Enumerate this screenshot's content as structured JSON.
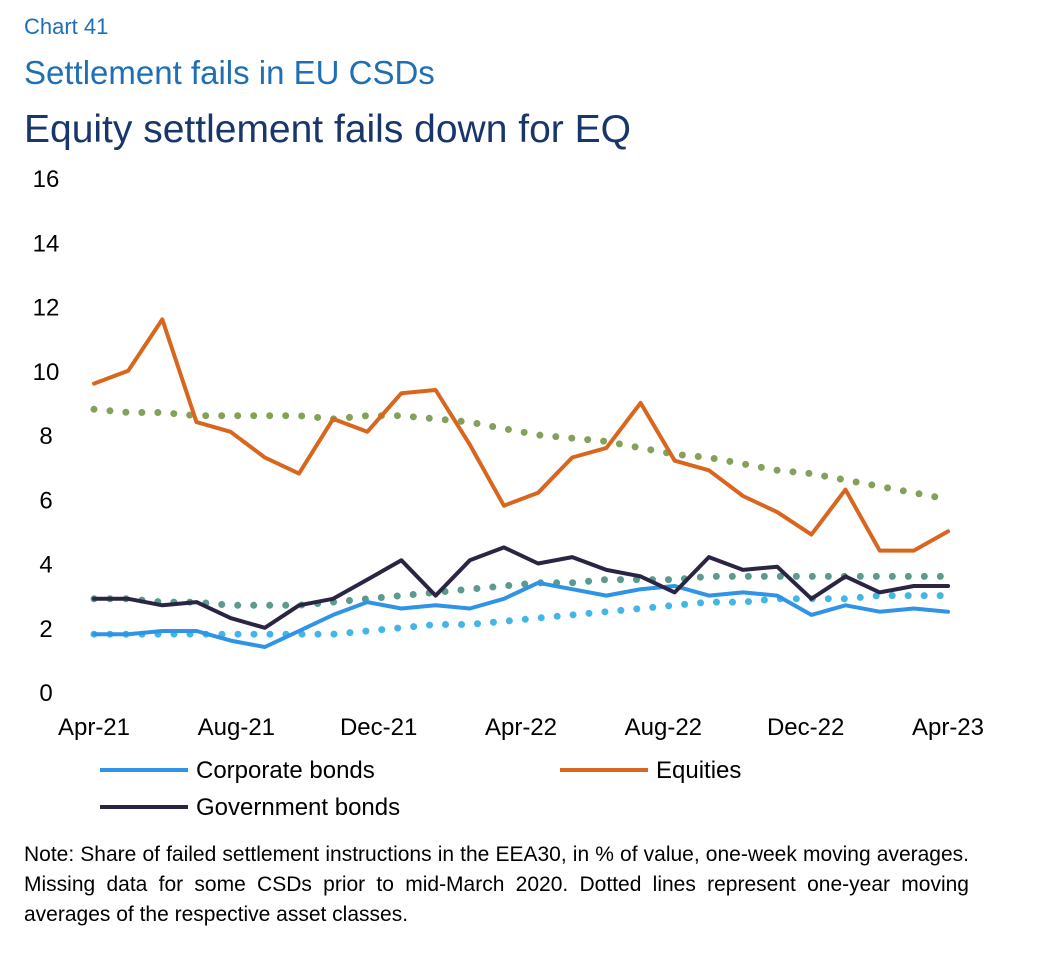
{
  "header": {
    "chart_number": "Chart 41",
    "title": "Settlement fails in EU CSDs",
    "subtitle": "Equity settlement fails down for EQ"
  },
  "note": "Note: Share of failed settlement instructions in the EEA30, in % of value, one-week moving averages. Missing data for some CSDs prior to mid-March 2020. Dotted lines represent one-year moving averages of the respective asset classes.",
  "colors": {
    "corporate_bonds": "#2f93e6",
    "equities": "#d9661f",
    "government_bonds": "#2b2544",
    "equities_avg": "#84a15b",
    "corporate_avg": "#43b6e8",
    "government_avg": "#5a9a8f"
  },
  "chart_data": {
    "type": "line",
    "title": "Equity settlement fails down for EQ",
    "xlabel": "",
    "ylabel": "",
    "ylim": [
      0,
      16
    ],
    "yticks": [
      0,
      2,
      4,
      6,
      8,
      10,
      12,
      14,
      16
    ],
    "x_tick_labels": [
      "Apr-21",
      "Aug-21",
      "Dec-21",
      "Apr-22",
      "Aug-22",
      "Dec-22",
      "Apr-23"
    ],
    "x": [
      "Apr-21",
      "May-21",
      "Jun-21",
      "Jul-21",
      "Aug-21",
      "Sep-21",
      "Oct-21",
      "Nov-21",
      "Dec-21",
      "Jan-22",
      "Feb-22",
      "Mar-22",
      "Apr-22",
      "May-22",
      "Jun-22",
      "Jul-22",
      "Aug-22",
      "Sep-22",
      "Oct-22",
      "Nov-22",
      "Dec-22",
      "Jan-23",
      "Feb-23",
      "Mar-23",
      "Apr-23",
      "May-23"
    ],
    "legend": [
      "Corporate bonds",
      "Equities",
      "Government bonds"
    ],
    "legend_position": "bottom",
    "grid": false,
    "series": [
      {
        "name": "Corporate bonds",
        "style": "solid",
        "values": [
          1.8,
          1.8,
          1.9,
          1.9,
          1.6,
          1.4,
          1.9,
          2.4,
          2.8,
          2.6,
          2.7,
          2.6,
          2.9,
          3.4,
          3.2,
          3.0,
          3.2,
          3.3,
          3.0,
          3.1,
          3.0,
          2.4,
          2.7,
          2.5,
          2.6,
          2.5
        ]
      },
      {
        "name": "Equities",
        "style": "solid",
        "values": [
          9.6,
          10.0,
          11.6,
          8.4,
          8.1,
          7.3,
          6.8,
          8.5,
          8.1,
          9.3,
          9.4,
          7.7,
          5.8,
          6.2,
          7.3,
          7.6,
          9.0,
          7.2,
          6.9,
          6.1,
          5.6,
          4.9,
          6.3,
          4.4,
          4.4,
          5.0
        ]
      },
      {
        "name": "Government bonds",
        "style": "solid",
        "values": [
          2.9,
          2.9,
          2.7,
          2.8,
          2.3,
          2.0,
          2.7,
          2.9,
          3.5,
          4.1,
          3.0,
          4.1,
          4.5,
          4.0,
          4.2,
          3.8,
          3.6,
          3.1,
          4.2,
          3.8,
          3.9,
          2.9,
          3.6,
          3.1,
          3.3,
          3.3
        ]
      },
      {
        "name": "",
        "style": "dotted",
        "color_key": "equities_avg",
        "values": [
          8.8,
          8.7,
          8.7,
          8.6,
          8.6,
          8.6,
          8.6,
          8.5,
          8.6,
          8.6,
          8.5,
          8.4,
          8.2,
          8.0,
          7.9,
          7.8,
          7.6,
          7.4,
          7.3,
          7.1,
          6.9,
          6.8,
          6.6,
          6.4,
          6.2,
          6.0
        ]
      },
      {
        "name": "",
        "style": "dotted",
        "color_key": "corporate_avg",
        "values": [
          1.8,
          1.8,
          1.8,
          1.8,
          1.8,
          1.8,
          1.8,
          1.8,
          1.9,
          2.0,
          2.1,
          2.1,
          2.2,
          2.3,
          2.4,
          2.5,
          2.6,
          2.7,
          2.8,
          2.8,
          2.9,
          2.9,
          2.9,
          3.0,
          3.0,
          3.0
        ]
      },
      {
        "name": "",
        "style": "dotted",
        "color_key": "government_avg",
        "values": [
          2.9,
          2.9,
          2.8,
          2.8,
          2.7,
          2.7,
          2.7,
          2.8,
          2.9,
          3.0,
          3.1,
          3.2,
          3.3,
          3.4,
          3.4,
          3.5,
          3.5,
          3.5,
          3.6,
          3.6,
          3.6,
          3.6,
          3.6,
          3.6,
          3.6,
          3.6
        ]
      }
    ]
  }
}
